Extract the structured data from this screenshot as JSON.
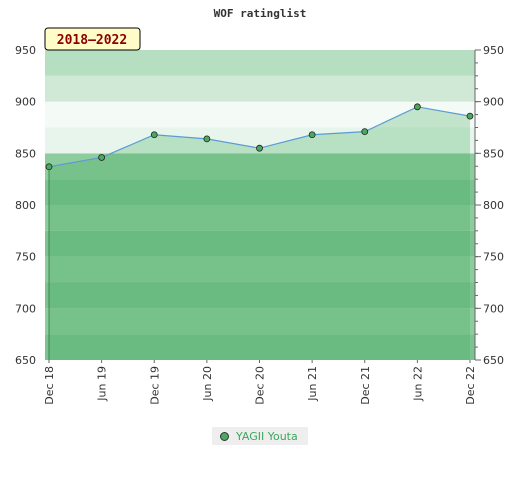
{
  "chart_data": {
    "type": "area",
    "title": "WOF ratinglist",
    "period_label": "2018–2022",
    "x": [
      "Dec 18",
      "Jun 19",
      "Dec 19",
      "Jun 20",
      "Dec 20",
      "Jun 21",
      "Dec 21",
      "Jun 22",
      "Dec 22"
    ],
    "series": [
      {
        "name": "YAGII Youta",
        "values": [
          837,
          846,
          868,
          864,
          855,
          868,
          871,
          895,
          886
        ]
      }
    ],
    "ylim": [
      650,
      950
    ],
    "y_ticks": [
      650,
      700,
      750,
      800,
      850,
      900,
      950
    ],
    "grid": true,
    "legend": "bottom-center",
    "colors": {
      "band_light": "#e8f5ec",
      "band_mid": "#cfe9d6",
      "band_dark": "#8dcc9d",
      "band_darker": "#7cc391",
      "line": "#5b9bd5",
      "marker": "#4aa860",
      "legend_text": "#3aa85a",
      "date_box_fill": "#fffcc8",
      "date_box_text": "#8b0000"
    }
  }
}
